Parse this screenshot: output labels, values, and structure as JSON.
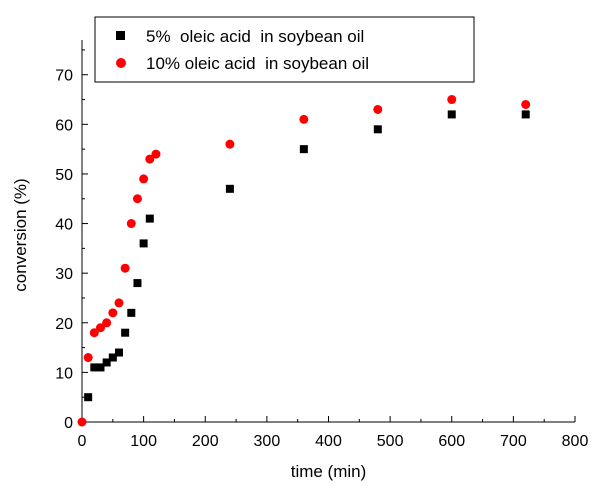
{
  "chart_data": {
    "type": "scatter",
    "title": "",
    "xlabel": "time (min)",
    "ylabel": "conversion (%)",
    "xlim": [
      0,
      800
    ],
    "ylim": [
      0,
      77
    ],
    "xticks": [
      0,
      100,
      200,
      300,
      400,
      500,
      600,
      700,
      800
    ],
    "yticks": [
      0,
      10,
      20,
      30,
      40,
      50,
      60,
      70
    ],
    "grid": false,
    "legend_position": "top-center",
    "series": [
      {
        "name": "5%  oleic acid  in soybean oil",
        "marker": "square",
        "color": "#000000",
        "x": [
          10,
          20,
          30,
          40,
          50,
          60,
          70,
          80,
          90,
          100,
          110,
          240,
          360,
          480,
          600,
          720
        ],
        "y": [
          5,
          11,
          11,
          12,
          13,
          14,
          18,
          22,
          28,
          36,
          41,
          47,
          55,
          59,
          62,
          62
        ]
      },
      {
        "name": "10% oleic acid  in soybean oil",
        "marker": "circle",
        "color": "#ff0000",
        "x": [
          0,
          10,
          20,
          30,
          40,
          50,
          60,
          70,
          80,
          90,
          100,
          110,
          120,
          240,
          360,
          480,
          600,
          720
        ],
        "y": [
          0,
          13,
          18,
          19,
          20,
          22,
          24,
          31,
          40,
          45,
          49,
          53,
          54,
          56,
          61,
          63,
          65,
          64
        ]
      }
    ]
  }
}
